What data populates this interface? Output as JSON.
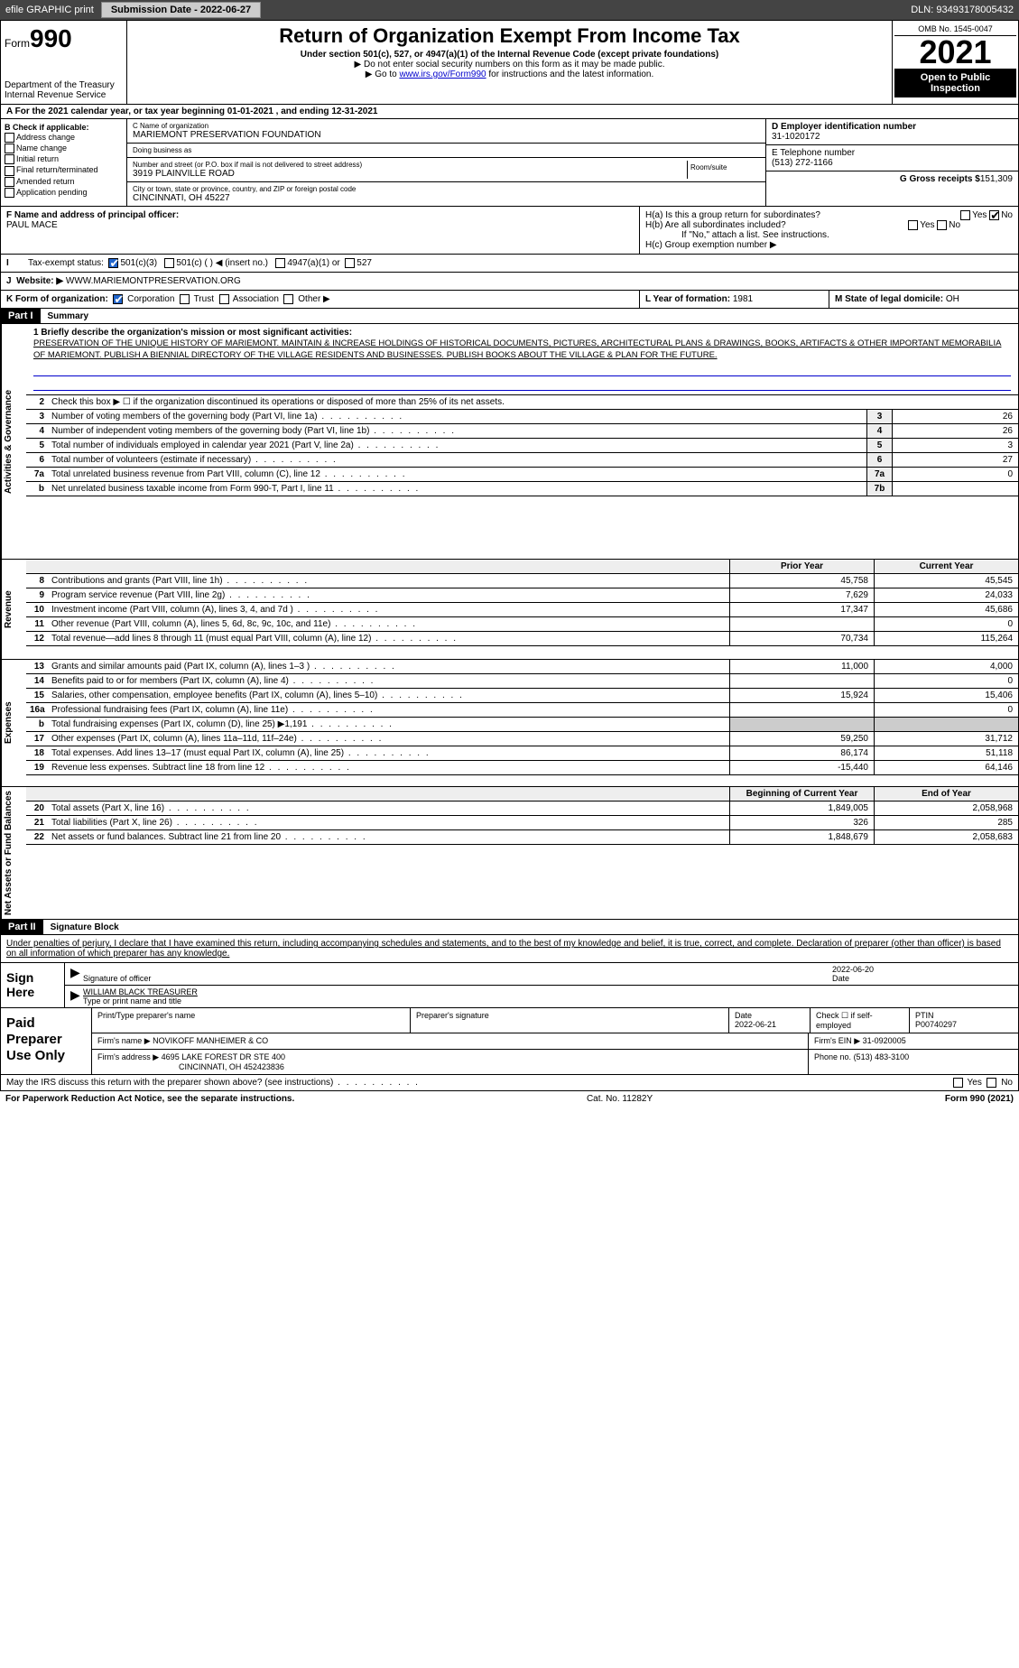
{
  "topbar": {
    "efile": "efile GRAPHIC print",
    "submission": "Submission Date - 2022-06-27",
    "dln": "DLN: 93493178005432"
  },
  "header": {
    "form": "990",
    "form_word": "Form",
    "title": "Return of Organization Exempt From Income Tax",
    "sub": "Under section 501(c), 527, or 4947(a)(1) of the Internal Revenue Code (except private foundations)",
    "arrow1": "▶ Do not enter social security numbers on this form as it may be made public.",
    "arrow2_pre": "▶ Go to ",
    "arrow2_link": "www.irs.gov/Form990",
    "arrow2_post": " for instructions and the latest information.",
    "dept": "Department of the Treasury",
    "irs": "Internal Revenue Service",
    "omb": "OMB No. 1545-0047",
    "year": "2021",
    "open": "Open to Public Inspection"
  },
  "rowA": "A For the 2021 calendar year, or tax year beginning 01-01-2021     , and ending 12-31-2021",
  "colB": {
    "hdr": "B Check if applicable:",
    "items": [
      "Address change",
      "Name change",
      "Initial return",
      "Final return/terminated",
      "Amended return",
      "Application pending"
    ]
  },
  "colC": {
    "name_lbl": "C Name of organization",
    "name": "MARIEMONT PRESERVATION FOUNDATION",
    "dba_lbl": "Doing business as",
    "dba": "",
    "street_lbl": "Number and street (or P.O. box if mail is not delivered to street address)",
    "room_lbl": "Room/suite",
    "street": "3919 PLAINVILLE ROAD",
    "city_lbl": "City or town, state or province, country, and ZIP or foreign postal code",
    "city": "CINCINNATI, OH  45227"
  },
  "colD": {
    "ein_lbl": "D Employer identification number",
    "ein": "31-1020172",
    "tel_lbl": "E Telephone number",
    "tel": "(513) 272-1166",
    "gross_lbl": "G Gross receipts $",
    "gross": "151,309"
  },
  "rowF": {
    "lbl": "F Name and address of principal officer:",
    "name": "PAUL MACE"
  },
  "rowH": {
    "ha": "H(a)  Is this a group return for subordinates?",
    "hb": "H(b)  Are all subordinates included?",
    "hb_note": "If \"No,\" attach a list. See instructions.",
    "hc": "H(c)  Group exemption number ▶",
    "yes": "Yes",
    "no": "No"
  },
  "rowI": {
    "lbl": "Tax-exempt status:",
    "opts": [
      "501(c)(3)",
      "501(c) (   ) ◀ (insert no.)",
      "4947(a)(1) or",
      "527"
    ]
  },
  "rowJ": {
    "lbl": "Website: ▶",
    "val": "WWW.MARIEMONTPRESERVATION.ORG"
  },
  "rowK": {
    "lbl": "K Form of organization:",
    "opts": [
      "Corporation",
      "Trust",
      "Association",
      "Other ▶"
    ]
  },
  "rowL": {
    "lbl": "L Year of formation:",
    "val": "1981"
  },
  "rowM": {
    "lbl": "M State of legal domicile:",
    "val": "OH"
  },
  "partI": {
    "hdr": "Part I",
    "title": "Summary",
    "q1": "1  Briefly describe the organization's mission or most significant activities:",
    "mission": "PRESERVATION OF THE UNIQUE HISTORY OF MARIEMONT. MAINTAIN & INCREASE HOLDINGS OF HISTORICAL DOCUMENTS, PICTURES, ARCHITECTURAL PLANS & DRAWINGS, BOOKS, ARTIFACTS & OTHER IMPORTANT MEMORABILIA OF MARIEMONT. PUBLISH A BIENNIAL DIRECTORY OF THE VILLAGE RESIDENTS AND BUSINESSES. PUBLISH BOOKS ABOUT THE VILLAGE & PLAN FOR THE FUTURE.",
    "q2": "Check this box ▶ ☐ if the organization discontinued its operations or disposed of more than 25% of its net assets.",
    "gov_rows": [
      {
        "n": "3",
        "desc": "Number of voting members of the governing body (Part VI, line 1a)",
        "box": "3",
        "val": "26"
      },
      {
        "n": "4",
        "desc": "Number of independent voting members of the governing body (Part VI, line 1b)",
        "box": "4",
        "val": "26"
      },
      {
        "n": "5",
        "desc": "Total number of individuals employed in calendar year 2021 (Part V, line 2a)",
        "box": "5",
        "val": "3"
      },
      {
        "n": "6",
        "desc": "Total number of volunteers (estimate if necessary)",
        "box": "6",
        "val": "27"
      },
      {
        "n": "7a",
        "desc": "Total unrelated business revenue from Part VIII, column (C), line 12",
        "box": "7a",
        "val": "0"
      },
      {
        "n": "b",
        "desc": "Net unrelated business taxable income from Form 990-T, Part I, line 11",
        "box": "7b",
        "val": ""
      }
    ],
    "prior": "Prior Year",
    "current": "Current Year",
    "rev_rows": [
      {
        "n": "8",
        "desc": "Contributions and grants (Part VIII, line 1h)",
        "v1": "45,758",
        "v2": "45,545"
      },
      {
        "n": "9",
        "desc": "Program service revenue (Part VIII, line 2g)",
        "v1": "7,629",
        "v2": "24,033"
      },
      {
        "n": "10",
        "desc": "Investment income (Part VIII, column (A), lines 3, 4, and 7d )",
        "v1": "17,347",
        "v2": "45,686"
      },
      {
        "n": "11",
        "desc": "Other revenue (Part VIII, column (A), lines 5, 6d, 8c, 9c, 10c, and 11e)",
        "v1": "",
        "v2": "0"
      },
      {
        "n": "12",
        "desc": "Total revenue—add lines 8 through 11 (must equal Part VIII, column (A), line 12)",
        "v1": "70,734",
        "v2": "115,264"
      }
    ],
    "exp_rows": [
      {
        "n": "13",
        "desc": "Grants and similar amounts paid (Part IX, column (A), lines 1–3 )",
        "v1": "11,000",
        "v2": "4,000"
      },
      {
        "n": "14",
        "desc": "Benefits paid to or for members (Part IX, column (A), line 4)",
        "v1": "",
        "v2": "0"
      },
      {
        "n": "15",
        "desc": "Salaries, other compensation, employee benefits (Part IX, column (A), lines 5–10)",
        "v1": "15,924",
        "v2": "15,406"
      },
      {
        "n": "16a",
        "desc": "Professional fundraising fees (Part IX, column (A), line 11e)",
        "v1": "",
        "v2": "0"
      },
      {
        "n": "b",
        "desc": "Total fundraising expenses (Part IX, column (D), line 25) ▶1,191",
        "v1": "grey",
        "v2": "grey"
      },
      {
        "n": "17",
        "desc": "Other expenses (Part IX, column (A), lines 11a–11d, 11f–24e)",
        "v1": "59,250",
        "v2": "31,712"
      },
      {
        "n": "18",
        "desc": "Total expenses. Add lines 13–17 (must equal Part IX, column (A), line 25)",
        "v1": "86,174",
        "v2": "51,118"
      },
      {
        "n": "19",
        "desc": "Revenue less expenses. Subtract line 18 from line 12",
        "v1": "-15,440",
        "v2": "64,146"
      }
    ],
    "begin": "Beginning of Current Year",
    "end": "End of Year",
    "net_rows": [
      {
        "n": "20",
        "desc": "Total assets (Part X, line 16)",
        "v1": "1,849,005",
        "v2": "2,058,968"
      },
      {
        "n": "21",
        "desc": "Total liabilities (Part X, line 26)",
        "v1": "326",
        "v2": "285"
      },
      {
        "n": "22",
        "desc": "Net assets or fund balances. Subtract line 21 from line 20",
        "v1": "1,848,679",
        "v2": "2,058,683"
      }
    ]
  },
  "partII": {
    "hdr": "Part II",
    "title": "Signature Block",
    "decl": "Under penalties of perjury, I declare that I have examined this return, including accompanying schedules and statements, and to the best of my knowledge and belief, it is true, correct, and complete. Declaration of preparer (other than officer) is based on all information of which preparer has any knowledge."
  },
  "sign": {
    "lbl": "Sign Here",
    "sig_lbl": "Signature of officer",
    "date": "2022-06-20",
    "date_lbl": "Date",
    "name": "WILLIAM BLACK TREASURER",
    "name_lbl": "Type or print name and title"
  },
  "paid": {
    "lbl": "Paid Preparer Use Only",
    "r1": {
      "c1": "Print/Type preparer's name",
      "c2": "Preparer's signature",
      "c3": "Date",
      "c3v": "2022-06-21",
      "c4": "Check ☐ if self-employed",
      "c5": "PTIN",
      "c5v": "P00740297"
    },
    "r2": {
      "c1": "Firm's name    ▶",
      "c1v": "NOVIKOFF MANHEIMER & CO",
      "c2": "Firm's EIN ▶",
      "c2v": "31-0920005"
    },
    "r3": {
      "c1": "Firm's address ▶",
      "c1v": "4695 LAKE FOREST DR STE 400",
      "c2": "Phone no.",
      "c2v": "(513) 483-3100"
    },
    "r3b": "CINCINNATI, OH  452423836"
  },
  "footer": {
    "q": "May the IRS discuss this return with the preparer shown above? (see instructions)",
    "yes": "Yes",
    "no": "No"
  },
  "bottom": {
    "left": "For Paperwork Reduction Act Notice, see the separate instructions.",
    "mid": "Cat. No. 11282Y",
    "right": "Form 990 (2021)"
  }
}
